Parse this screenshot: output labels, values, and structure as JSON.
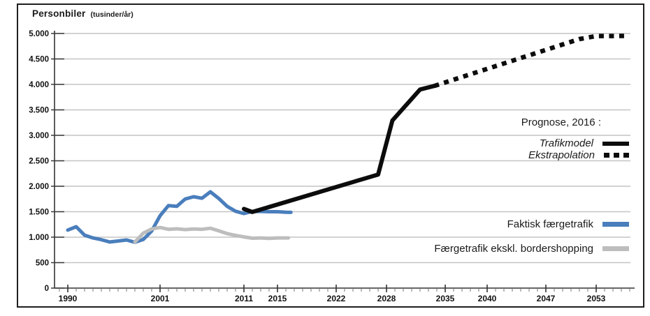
{
  "figure": {
    "title": "Personbiler",
    "title_unit": "(tusinder/år)"
  },
  "legend_prognose": {
    "heading": "Prognose, 2016 :",
    "items": [
      {
        "label": "Trafikmodel",
        "swatch": "solid-black-line",
        "color": "#0c0c0c"
      },
      {
        "label": "Ekstrapolation",
        "swatch": "dashed-black-line",
        "color": "#0c0c0c"
      }
    ]
  },
  "legend_series": [
    {
      "label": "Faktisk færgetrafik",
      "color": "#4a7ebc"
    },
    {
      "label": "Færgetrafik ekskl. bordershopping",
      "color": "#bdbdbd"
    }
  ],
  "chart_data": {
    "type": "line",
    "title": "Personbiler (tusinder/år)",
    "xlabel": "",
    "ylabel": "Personbiler (tusinder/år)",
    "xlim": [
      1989,
      2057
    ],
    "ylim": [
      0,
      5000
    ],
    "grid": "horizontal-light",
    "legend_position": "inside-right",
    "y_ticks": [
      {
        "value": 5000,
        "label": "5.000"
      },
      {
        "value": 4500,
        "label": "4.500"
      },
      {
        "value": 4000,
        "label": "4.000"
      },
      {
        "value": 3500,
        "label": "3.500"
      },
      {
        "value": 3000,
        "label": "3.000"
      },
      {
        "value": 2500,
        "label": "2.500"
      },
      {
        "value": 2000,
        "label": "2.000"
      },
      {
        "value": 1500,
        "label": "1.500"
      },
      {
        "value": 1000,
        "label": "1.000"
      },
      {
        "value": 500,
        "label": "500"
      },
      {
        "value": 0,
        "label": "0"
      }
    ],
    "x_ticks": [
      {
        "year": 1990,
        "label": "1990"
      },
      {
        "year": 2001,
        "label": "2001"
      },
      {
        "year": 2011,
        "label": "2011"
      },
      {
        "year": 2015,
        "label": "2015"
      },
      {
        "year": 2022,
        "label": "2022"
      },
      {
        "year": 2028,
        "label": "2028"
      },
      {
        "year": 2035,
        "label": "2035"
      },
      {
        "year": 2040,
        "label": "2040"
      },
      {
        "year": 2047,
        "label": "2047"
      },
      {
        "year": 2053,
        "label": "2053"
      }
    ],
    "series": [
      {
        "name": "Faktisk færgetrafik",
        "color": "#4a7ebc",
        "style": "solid",
        "width": 5,
        "points": [
          [
            1990,
            1140
          ],
          [
            1991,
            1205
          ],
          [
            1992,
            1040
          ],
          [
            1993,
            985
          ],
          [
            1994,
            950
          ],
          [
            1995,
            905
          ],
          [
            1996,
            925
          ],
          [
            1997,
            945
          ],
          [
            1998,
            900
          ],
          [
            1999,
            955
          ],
          [
            2000,
            1120
          ],
          [
            2001,
            1420
          ],
          [
            2002,
            1620
          ],
          [
            2003,
            1605
          ],
          [
            2004,
            1750
          ],
          [
            2005,
            1795
          ],
          [
            2006,
            1765
          ],
          [
            2007,
            1890
          ],
          [
            2008,
            1760
          ],
          [
            2009,
            1605
          ],
          [
            2010,
            1510
          ],
          [
            2011,
            1465
          ],
          [
            2012,
            1505
          ],
          [
            2013,
            1505
          ],
          [
            2014,
            1500
          ],
          [
            2015,
            1500
          ],
          [
            2016,
            1490
          ],
          [
            2016.6,
            1488
          ]
        ]
      },
      {
        "name": "Færgetrafik ekskl. bordershopping",
        "color": "#bdbdbd",
        "style": "solid",
        "width": 5,
        "points": [
          [
            1998,
            905
          ],
          [
            1999,
            1080
          ],
          [
            2000,
            1160
          ],
          [
            2001,
            1190
          ],
          [
            2002,
            1155
          ],
          [
            2003,
            1165
          ],
          [
            2004,
            1150
          ],
          [
            2005,
            1160
          ],
          [
            2006,
            1155
          ],
          [
            2007,
            1175
          ],
          [
            2008,
            1125
          ],
          [
            2009,
            1070
          ],
          [
            2010,
            1035
          ],
          [
            2011,
            1005
          ],
          [
            2012,
            980
          ],
          [
            2013,
            985
          ],
          [
            2014,
            975
          ],
          [
            2015,
            985
          ],
          [
            2016.3,
            985
          ]
        ]
      },
      {
        "name": "Trafikmodel (Prognose 2016)",
        "color": "#0c0c0c",
        "style": "solid",
        "width": 6,
        "points": [
          [
            2011,
            1555
          ],
          [
            2012,
            1495
          ],
          [
            2027,
            2230
          ],
          [
            2028.7,
            3290
          ],
          [
            2032,
            3900
          ],
          [
            2033.7,
            3970
          ]
        ]
      },
      {
        "name": "Ekstrapolation (Prognose 2016)",
        "color": "#0c0c0c",
        "style": "dashed",
        "width": 6.5,
        "points": [
          [
            2033.7,
            3970
          ],
          [
            2051,
            4890
          ],
          [
            2053,
            4950
          ],
          [
            2056.6,
            4952
          ]
        ]
      }
    ]
  }
}
